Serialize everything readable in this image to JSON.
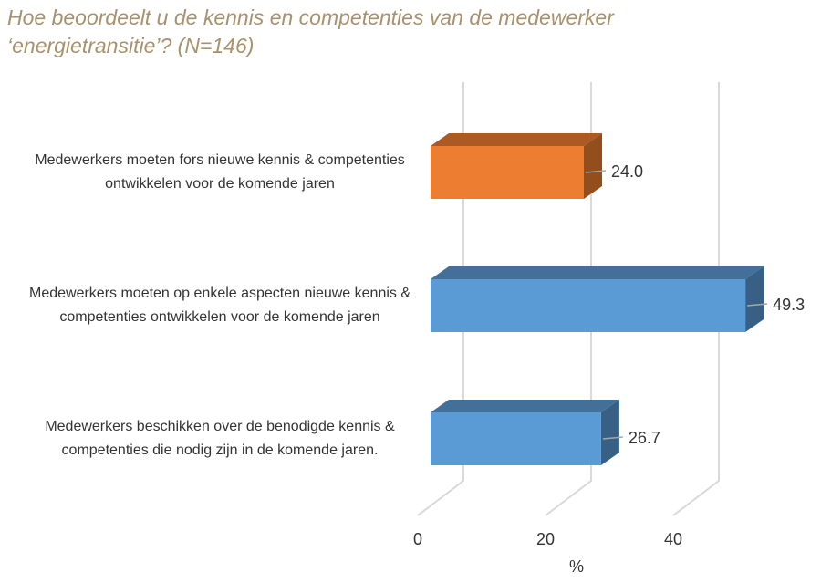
{
  "chart_data": {
    "type": "bar",
    "title": "Hoe beoordeelt u de kennis en competenties van de medewerker ‘energietransitie’? (N=146)",
    "categories": [
      "Medewerkers moeten fors nieuwe kennis & competenties ontwikkelen voor de komende jaren",
      "Medewerkers moeten op enkele aspecten nieuwe kennis & competenties ontwikkelen voor de komende jaren",
      "Medewerkers beschikken over de benodigde kennis & competenties die nodig zijn in de komende jaren."
    ],
    "values": [
      24.0,
      49.3,
      26.7
    ],
    "value_labels": [
      "24.0",
      "49.3",
      "26.7"
    ],
    "colors": [
      "#ed7d31",
      "#5b9bd5",
      "#5b9bd5"
    ],
    "xlabel": "%",
    "xlim": [
      0,
      50
    ],
    "xticks": [
      0,
      20,
      40
    ],
    "grid": true
  }
}
